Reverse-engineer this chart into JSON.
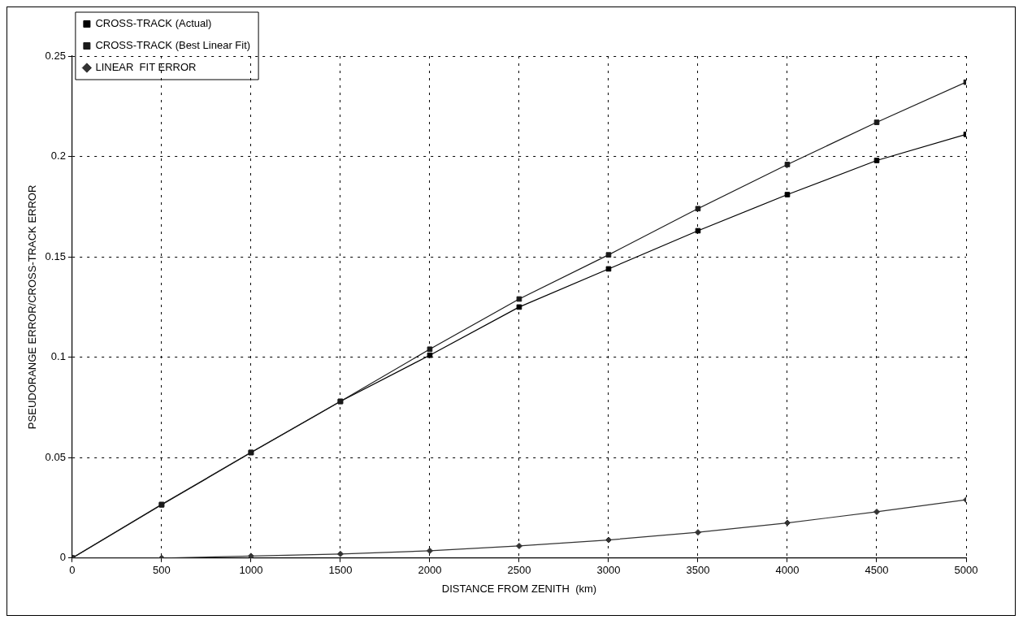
{
  "chart_data": {
    "type": "line",
    "xlabel": "DISTANCE FROM ZENITH  (km)",
    "ylabel": "PSEUDORANGE ERROR/CROSS-TRACK ERROR",
    "x": [
      0,
      500,
      1000,
      1500,
      2000,
      2500,
      3000,
      3500,
      4000,
      4500,
      5000
    ],
    "series": [
      {
        "name": "CROSS-TRACK (Actual)",
        "color": "#000000",
        "marker": "square",
        "values": [
          0,
          0.0265,
          0.0525,
          0.078,
          0.101,
          0.125,
          0.144,
          0.163,
          0.181,
          0.198,
          0.211
        ]
      },
      {
        "name": "CROSS-TRACK (Best Linear Fit)",
        "color": "#1a1a1a",
        "marker": "square",
        "values": [
          0,
          0.0267,
          0.0526,
          0.078,
          0.104,
          0.129,
          0.151,
          0.174,
          0.196,
          0.217,
          0.237
        ]
      },
      {
        "name": "LINEAR  FIT ERROR",
        "color": "#333333",
        "marker": "diamond",
        "values": [
          0,
          0,
          0.001,
          0.002,
          0.0036,
          0.006,
          0.009,
          0.0128,
          0.0175,
          0.023,
          0.029
        ]
      }
    ],
    "xlim": [
      0,
      5000
    ],
    "xticks": [
      0,
      500,
      1000,
      1500,
      2000,
      2500,
      3000,
      3500,
      4000,
      4500,
      5000
    ],
    "ylim": [
      0,
      0.25
    ],
    "yticks": [
      0,
      0.05,
      0.1,
      0.15,
      0.2,
      0.25
    ],
    "grid": true,
    "legend": "top left",
    "line_style": "solid"
  }
}
